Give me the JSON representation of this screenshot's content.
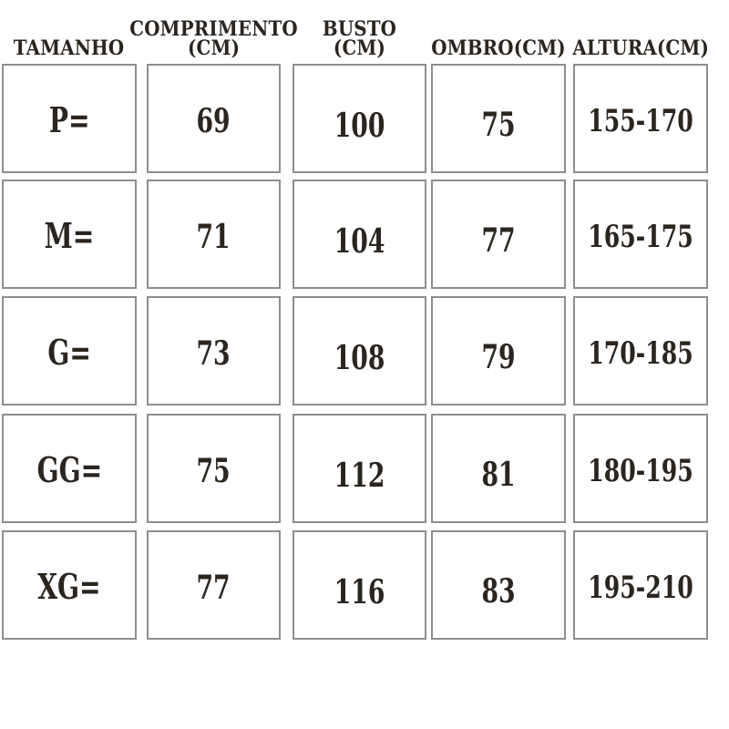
{
  "table": {
    "columns": [
      {
        "id": "tamanho",
        "label": "TAMANHO"
      },
      {
        "id": "comprimento",
        "label": "COMPRIMENTO\n(CM)"
      },
      {
        "id": "busto",
        "label": "BUSTO (CM)"
      },
      {
        "id": "ombro",
        "label": "OMBRO(CM)"
      },
      {
        "id": "altura",
        "label": "ALTURA(CM)"
      }
    ],
    "rows": [
      {
        "tamanho": "P=",
        "comprimento": "69",
        "busto": "100",
        "ombro": "75",
        "altura": "155-170"
      },
      {
        "tamanho": "M=",
        "comprimento": "71",
        "busto": "104",
        "ombro": "77",
        "altura": "165-175"
      },
      {
        "tamanho": "G=",
        "comprimento": "73",
        "busto": "108",
        "ombro": "79",
        "altura": "170-185"
      },
      {
        "tamanho": "GG=",
        "comprimento": "75",
        "busto": "112",
        "ombro": "81",
        "altura": "180-195"
      },
      {
        "tamanho": "XG=",
        "comprimento": "77",
        "busto": "116",
        "ombro": "83",
        "altura": "195-210"
      }
    ]
  },
  "colors": {
    "text": "#2b2520",
    "border": "#8e8e8e",
    "background": "#ffffff"
  }
}
